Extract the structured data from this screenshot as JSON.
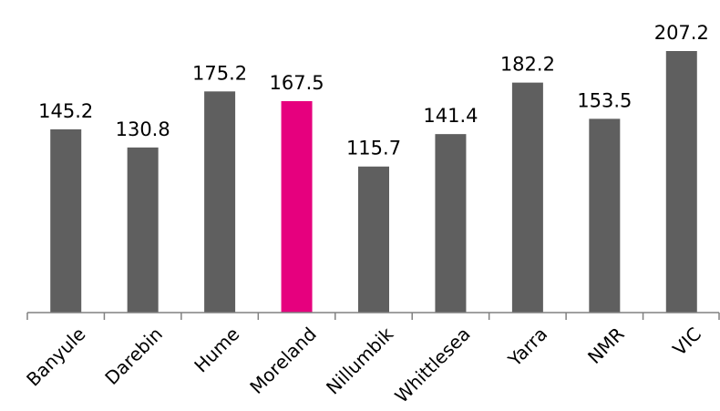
{
  "chart_data": {
    "type": "bar",
    "title": "",
    "xlabel": "",
    "ylabel": "",
    "categories": [
      "Banyule",
      "Darebin",
      "Hume",
      "Moreland",
      "Nillumbik",
      "Whittlesea",
      "Yarra",
      "NMR",
      "VIC"
    ],
    "values": [
      145.2,
      130.8,
      175.2,
      167.5,
      115.7,
      141.4,
      182.2,
      153.5,
      207.2
    ],
    "highlight_category": "Moreland",
    "colors": {
      "default": "#5f5f5f",
      "highlight": "#e6007e",
      "axis": "#808080"
    },
    "ylim": [
      0,
      210
    ],
    "grid": false,
    "data_labels": true
  }
}
